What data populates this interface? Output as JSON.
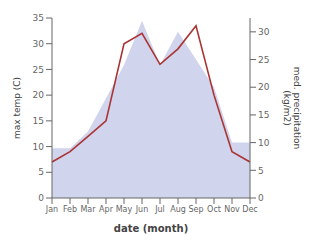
{
  "chart_data": {
    "type": "line",
    "categories": [
      "Jan",
      "Feb",
      "Mar",
      "Apr",
      "May",
      "Jun",
      "Jul",
      "Aug",
      "Sep",
      "Oct",
      "Nov",
      "Dec"
    ],
    "series": [
      {
        "type": "area",
        "axis": "y2",
        "color": "#b0b8e0",
        "values": [
          9.0,
          9.0,
          12.0,
          18.0,
          24.0,
          32.0,
          24.0,
          30.0,
          25.0,
          20.0,
          10.0,
          10.0
        ]
      },
      {
        "type": "line",
        "color": "#aa3333",
        "values": [
          7.0,
          9.0,
          12.0,
          15.0,
          30.0,
          32.0,
          26.0,
          29.0,
          33.5,
          20.0,
          9.0,
          7.0
        ]
      }
    ],
    "xlabel": "date (month)",
    "ylabel": "max temp (C)",
    "y2label": "med. precipitation\n(kg/m2)",
    "ylim": [
      0,
      35
    ],
    "yticks": [
      0,
      5,
      10,
      15,
      20,
      25,
      30,
      35
    ],
    "y2lim": [
      0,
      32.5
    ],
    "y2ticks": [
      0,
      5,
      10,
      15,
      20,
      25,
      30
    ],
    "grid": false
  }
}
